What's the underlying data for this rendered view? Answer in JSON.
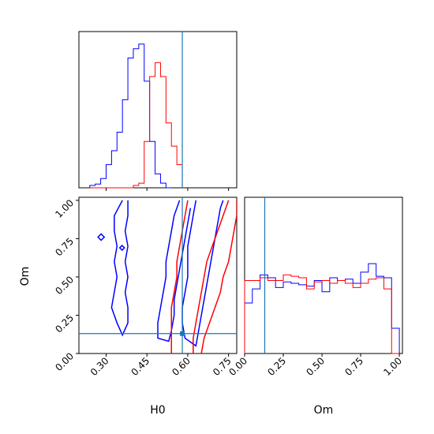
{
  "chart_data": {
    "type": "corner",
    "parameters": [
      "H0",
      "Om"
    ],
    "colors": {
      "blue": "#0000ff",
      "red": "#ff0000",
      "truth": "#1f77b4"
    },
    "truth": {
      "H0": 0.58,
      "Om": 0.13
    },
    "axes": {
      "H0": {
        "xlabel": "H0",
        "lim": [
          0.2,
          0.78
        ],
        "ticks": [
          0.3,
          0.45,
          0.6,
          0.75
        ],
        "tick_labels": [
          "0.30",
          "0.45",
          "0.60",
          "0.75"
        ]
      },
      "Om": {
        "xlabel": "Om",
        "ylabel": "Om",
        "lim": [
          0.0,
          1.02
        ],
        "ticks": [
          0.0,
          0.25,
          0.5,
          0.75,
          1.0
        ],
        "tick_labels": [
          "0.00",
          "0.25",
          "0.50",
          "0.75",
          "1.00"
        ]
      }
    },
    "hist_H0": {
      "bin_width": 0.02,
      "edges_start": 0.3,
      "blue": [
        0.5,
        0.8,
        2,
        5,
        8,
        12,
        19,
        28,
        30,
        31,
        23,
        10,
        3,
        1,
        0
      ],
      "red": [
        0,
        0,
        0,
        0,
        0,
        0,
        0,
        0,
        0.5,
        1,
        10,
        24,
        27,
        24,
        14,
        9,
        5
      ]
    },
    "hist_Om": {
      "bin_width": 0.05,
      "edges_start": 0.0,
      "blue": [
        1.8,
        2.3,
        2.8,
        2.7,
        2.35,
        2.55,
        2.5,
        2.45,
        2.4,
        2.6,
        2.2,
        2.7,
        2.6,
        2.65,
        2.5,
        2.9,
        3.2,
        2.75,
        2.7,
        0.9
      ],
      "red": [
        2.6,
        2.6,
        2.7,
        2.6,
        2.6,
        2.8,
        2.75,
        2.7,
        2.3,
        2.55,
        2.6,
        2.5,
        2.6,
        2.5,
        2.35,
        2.5,
        2.65,
        2.7,
        2.3,
        0.0
      ]
    },
    "contours_blue": [
      [
        [
          0.36,
          1.0
        ],
        [
          0.33,
          0.9
        ],
        [
          0.33,
          0.8
        ],
        [
          0.34,
          0.7
        ],
        [
          0.33,
          0.6
        ],
        [
          0.34,
          0.5
        ],
        [
          0.33,
          0.4
        ],
        [
          0.32,
          0.3
        ],
        [
          0.34,
          0.2
        ],
        [
          0.36,
          0.12
        ],
        [
          0.38,
          0.2
        ],
        [
          0.38,
          0.3
        ],
        [
          0.37,
          0.4
        ],
        [
          0.38,
          0.5
        ],
        [
          0.37,
          0.6
        ],
        [
          0.38,
          0.7
        ],
        [
          0.37,
          0.8
        ],
        [
          0.38,
          0.9
        ],
        [
          0.38,
          1.0
        ]
      ],
      [
        [
          0.57,
          1.0
        ],
        [
          0.55,
          0.9
        ],
        [
          0.54,
          0.8
        ],
        [
          0.53,
          0.7
        ],
        [
          0.52,
          0.6
        ],
        [
          0.52,
          0.5
        ],
        [
          0.51,
          0.4
        ],
        [
          0.5,
          0.3
        ],
        [
          0.49,
          0.2
        ],
        [
          0.49,
          0.1
        ],
        [
          0.53,
          0.08
        ],
        [
          0.54,
          0.15
        ],
        [
          0.55,
          0.25
        ],
        [
          0.55,
          0.35
        ],
        [
          0.56,
          0.45
        ],
        [
          0.57,
          0.55
        ],
        [
          0.58,
          0.65
        ],
        [
          0.59,
          0.75
        ],
        [
          0.6,
          0.85
        ],
        [
          0.61,
          0.95
        ]
      ],
      [
        [
          0.63,
          1.0
        ],
        [
          0.62,
          0.9
        ],
        [
          0.61,
          0.8
        ],
        [
          0.6,
          0.7
        ],
        [
          0.6,
          0.6
        ],
        [
          0.6,
          0.5
        ],
        [
          0.59,
          0.4
        ],
        [
          0.58,
          0.3
        ],
        [
          0.58,
          0.2
        ],
        [
          0.59,
          0.1
        ],
        [
          0.63,
          0.05
        ],
        [
          0.64,
          0.15
        ],
        [
          0.65,
          0.25
        ],
        [
          0.66,
          0.35
        ],
        [
          0.67,
          0.45
        ],
        [
          0.68,
          0.55
        ],
        [
          0.69,
          0.65
        ],
        [
          0.7,
          0.75
        ],
        [
          0.71,
          0.85
        ],
        [
          0.72,
          0.95
        ],
        [
          0.73,
          1.0
        ]
      ]
    ],
    "contours_red": [
      [
        [
          0.6,
          1.0
        ],
        [
          0.59,
          0.9
        ],
        [
          0.58,
          0.8
        ],
        [
          0.57,
          0.7
        ],
        [
          0.56,
          0.6
        ],
        [
          0.56,
          0.5
        ],
        [
          0.55,
          0.4
        ],
        [
          0.54,
          0.3
        ],
        [
          0.54,
          0.2
        ],
        [
          0.54,
          0.0
        ]
      ],
      [
        [
          0.62,
          0.0
        ],
        [
          0.62,
          0.1
        ],
        [
          0.63,
          0.2
        ],
        [
          0.64,
          0.3
        ],
        [
          0.65,
          0.4
        ],
        [
          0.66,
          0.5
        ],
        [
          0.67,
          0.6
        ],
        [
          0.69,
          0.7
        ],
        [
          0.71,
          0.8
        ],
        [
          0.73,
          0.9
        ],
        [
          0.75,
          1.0
        ]
      ],
      [
        [
          0.65,
          0.0
        ],
        [
          0.66,
          0.1
        ],
        [
          0.68,
          0.2
        ],
        [
          0.7,
          0.3
        ],
        [
          0.72,
          0.4
        ],
        [
          0.73,
          0.5
        ],
        [
          0.75,
          0.6
        ],
        [
          0.76,
          0.7
        ],
        [
          0.77,
          0.8
        ],
        [
          0.78,
          0.9
        ],
        [
          0.78,
          1.0
        ]
      ]
    ]
  }
}
